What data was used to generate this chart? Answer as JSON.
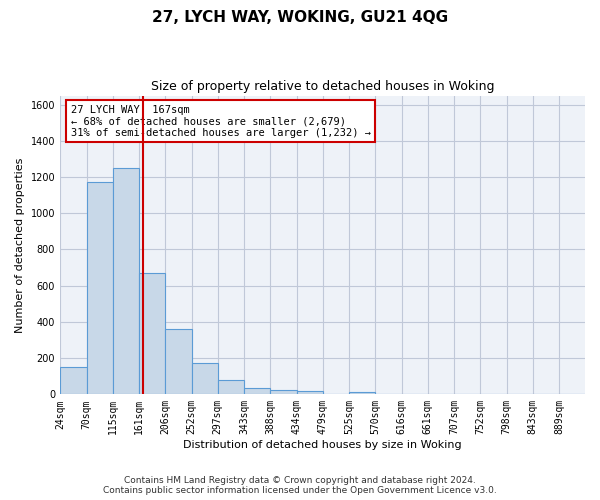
{
  "title": "27, LYCH WAY, WOKING, GU21 4QG",
  "subtitle": "Size of property relative to detached houses in Woking",
  "xlabel": "Distribution of detached houses by size in Woking",
  "ylabel": "Number of detached properties",
  "bar_color": "#c8d8e8",
  "bar_edge_color": "#5b9bd5",
  "grid_color": "#c0c8d8",
  "bg_color": "#eef2f8",
  "vline_x": 167,
  "vline_color": "#cc0000",
  "annotation_line1": "27 LYCH WAY: 167sqm",
  "annotation_line2": "← 68% of detached houses are smaller (2,679)",
  "annotation_line3": "31% of semi-detached houses are larger (1,232) →",
  "annotation_box_color": "#ffffff",
  "annotation_border_color": "#cc0000",
  "bins": [
    24,
    70,
    115,
    161,
    206,
    252,
    297,
    343,
    388,
    434,
    479,
    525,
    570,
    616,
    661,
    707,
    752,
    798,
    843,
    889,
    934
  ],
  "heights": [
    150,
    1175,
    1250,
    670,
    360,
    175,
    80,
    35,
    25,
    20,
    0,
    15,
    0,
    0,
    0,
    0,
    0,
    0,
    0,
    0
  ],
  "ylim": [
    0,
    1650
  ],
  "yticks": [
    0,
    200,
    400,
    600,
    800,
    1000,
    1200,
    1400,
    1600
  ],
  "footer_line1": "Contains HM Land Registry data © Crown copyright and database right 2024.",
  "footer_line2": "Contains public sector information licensed under the Open Government Licence v3.0.",
  "title_fontsize": 11,
  "subtitle_fontsize": 9,
  "tick_fontsize": 7,
  "label_fontsize": 8,
  "footer_fontsize": 6.5,
  "annotation_fontsize": 7.5
}
